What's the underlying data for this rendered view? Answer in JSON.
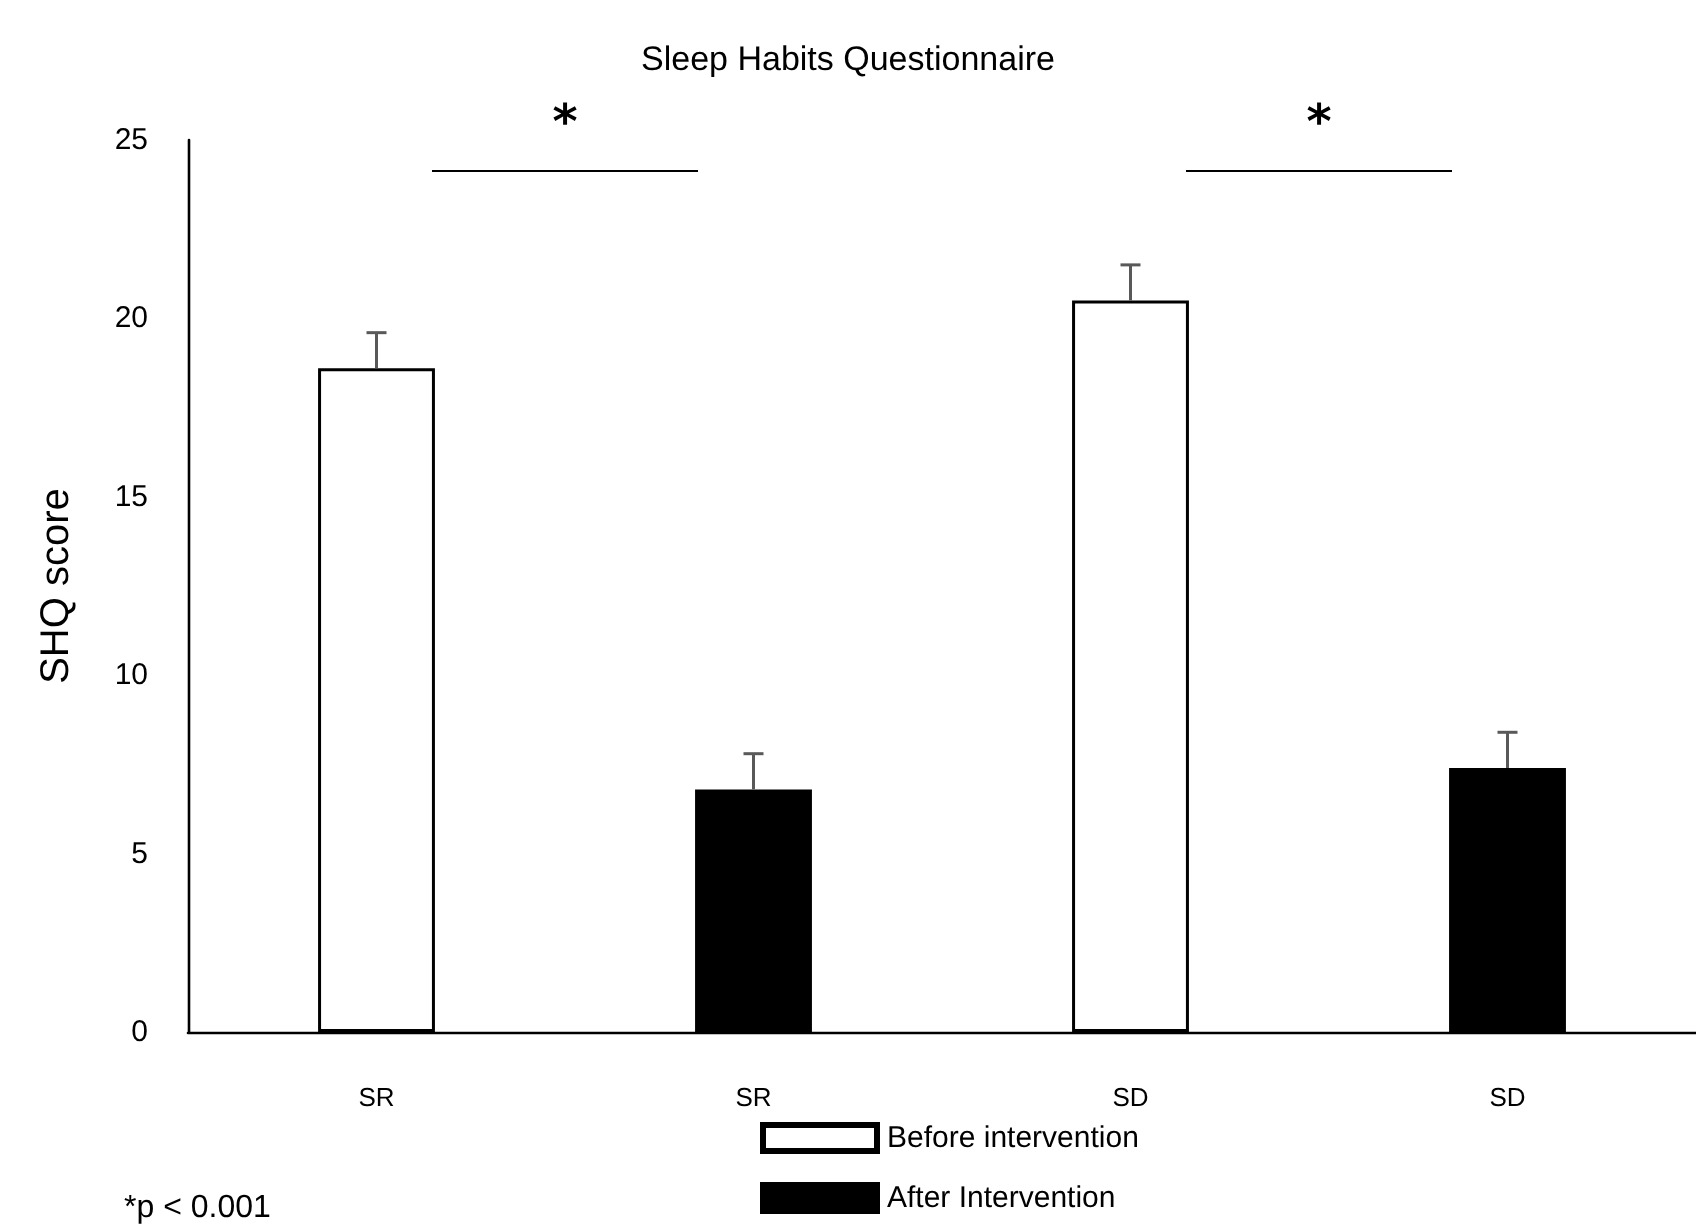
{
  "chart_data": {
    "type": "bar",
    "title": "Sleep Habits Questionnaire",
    "ylabel": "SHQ score",
    "categories": [
      "SR",
      "SR",
      "SD",
      "SD"
    ],
    "series": [
      {
        "name": "Before intervention",
        "color": "#ffffff",
        "values": [
          18.6,
          null,
          20.5,
          null
        ],
        "errors": [
          [
            18.6,
            19.6
          ],
          null,
          [
            20.5,
            21.5
          ],
          null
        ]
      },
      {
        "name": "After Intervention",
        "color": "#000000",
        "values": [
          null,
          6.8,
          null,
          7.4
        ],
        "errors": [
          null,
          [
            6.8,
            7.8
          ],
          null,
          [
            7.4,
            8.4
          ]
        ]
      }
    ],
    "ylim": [
      0,
      25
    ],
    "yticks": [
      0,
      5,
      10,
      15,
      20,
      25
    ],
    "grid": false,
    "legend": "bottom",
    "annotations": [
      "*",
      "*",
      "*p < 0.001"
    ]
  }
}
